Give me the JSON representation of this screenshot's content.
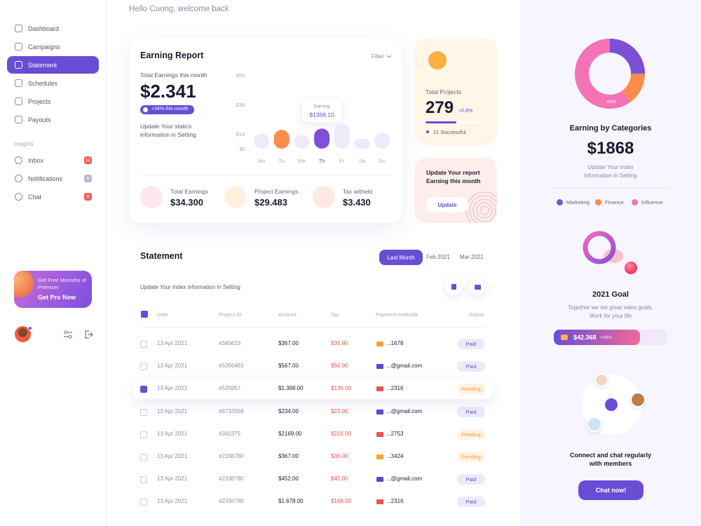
{
  "greeting": "Hello Cuong, welcome back",
  "sidebar": {
    "menu": [
      "Dashboard",
      "Campaigns",
      "Statement",
      "Schedules",
      "Projects",
      "Payouts"
    ],
    "insights_title": "Insights",
    "insights": [
      {
        "label": "Inbox",
        "badge": "12",
        "color": "#f06262"
      },
      {
        "label": "Notifications",
        "badge": "6",
        "color": "#b9b9c8"
      },
      {
        "label": "Chat",
        "badge": "6",
        "color": "#f06262"
      }
    ],
    "promo": {
      "text": "Get Free Moonths of Premium",
      "cta": "Get Pro Now"
    }
  },
  "earning_report": {
    "title": "Earning Report",
    "filter": "Filter",
    "total_label": "Total Earnings this month",
    "total": "$2.341",
    "change": "+34% this month",
    "note": "Update Your statics information in Setting",
    "stats": [
      {
        "label": "Total Earnings",
        "value": "$34.300",
        "color": "#fde7f0"
      },
      {
        "label": "Project Earnings",
        "value": "$29.483",
        "color": "#fff1dd"
      },
      {
        "label": "Tax witheld",
        "value": "$3.430",
        "color": "#fde8e6"
      }
    ]
  },
  "earning_chart": {
    "type": "bar",
    "categories": [
      "Mo",
      "Tu",
      "We",
      "Th",
      "Fr",
      "Sa",
      "Su"
    ],
    "values": [
      1017,
      1280,
      930,
      1368.1,
      1719,
      667,
      1070
    ],
    "value_labels": [
      null,
      null,
      null,
      "$1368.10",
      null,
      null,
      null
    ],
    "tooltip_title": "Earning",
    "colors": [
      "#efeafa",
      "#fb8c4c",
      "#efeafa",
      "#8050d8",
      "#efeafa",
      "#efeafa",
      "#efeafa"
    ],
    "ylim": [
      0,
      5000
    ],
    "yticks": [
      {
        "value": 0,
        "label": "$0"
      },
      {
        "value": 1000,
        "label": "$1K"
      },
      {
        "value": 3000,
        "label": "$3K"
      },
      {
        "value": 5000,
        "label": "$5K"
      }
    ]
  },
  "total_projects": {
    "label": "Total Projects",
    "value": "279",
    "change": "+0.8%",
    "successful": "21 Successful"
  },
  "update_card": {
    "text": "Update Your report Earning this month",
    "button": "Update"
  },
  "statement": {
    "title": "Statement",
    "tabs": [
      "Last Month",
      "Feb 2021",
      "Mar 2021"
    ],
    "note": "Update Your index information in Setting",
    "columns": [
      "Date",
      "Project ID",
      "Amount",
      "Tax",
      "Payment methods",
      "Status"
    ],
    "rows": [
      {
        "date": "13 Apr 2021",
        "id": "#345623",
        "amount": "$367.00",
        "tax": "$36.00",
        "method": "...1678",
        "method_color": "#f9a23b",
        "status": "Paid",
        "status_color": "#6a4dd6",
        "checked": false
      },
      {
        "date": "13 Apr 2021",
        "id": "#5356483",
        "amount": "$567.00",
        "tax": "$56.00",
        "method": "...@gmail.com",
        "method_color": "#5b47d0",
        "status": "Paid",
        "status_color": "#6a4dd6",
        "checked": false
      },
      {
        "date": "13 Apr 2021",
        "id": "#535957",
        "amount": "$1.368.00",
        "tax": "$136.00",
        "method": "...2316",
        "method_color": "#ef5350",
        "status": "Pending",
        "status_color": "#f39c2f",
        "checked": true
      },
      {
        "date": "13 Apr 2021",
        "id": "#6733569",
        "amount": "$234.00",
        "tax": "$23.00",
        "method": "...@gmail.com",
        "method_color": "#5b47d0",
        "status": "Paid",
        "status_color": "#6a4dd6",
        "checked": false
      },
      {
        "date": "13 Apr 2021",
        "id": "#342375",
        "amount": "$2169.00",
        "tax": "$216.00",
        "method": "...2753",
        "method_color": "#ef5350",
        "status": "Pending",
        "status_color": "#f39c2f",
        "checked": false
      },
      {
        "date": "13 Apr 2021",
        "id": "#2336780",
        "amount": "$367.00",
        "tax": "$36.00",
        "method": "...3424",
        "method_color": "#f9a23b",
        "status": "Pending",
        "status_color": "#f39c2f",
        "checked": false
      },
      {
        "date": "13 Apr 2021",
        "id": "#2336780",
        "amount": "$452.00",
        "tax": "$45.00",
        "method": "...@gmail.com",
        "method_color": "#5b47d0",
        "status": "Paid",
        "status_color": "#6a4dd6",
        "checked": false
      },
      {
        "date": "13 Apr 2021",
        "id": "#2336780",
        "amount": "$1.678.00",
        "tax": "$168.00",
        "method": "...2316",
        "method_color": "#ef5350",
        "status": "Paid",
        "status_color": "#6a4dd6",
        "checked": false
      }
    ]
  },
  "categories_chart": {
    "type": "pie",
    "title": "Earning by Categories",
    "total": "$1868",
    "note": "Update Your index information in Setting",
    "series": [
      {
        "name": "Marketing",
        "color": "#7c4fd6",
        "value": 25
      },
      {
        "name": "Finance",
        "color": "#fb8c4c",
        "value": 15
      },
      {
        "name": "Influence",
        "color": "#f472b6",
        "value": 60,
        "value_label": "60%"
      }
    ]
  },
  "goal": {
    "title": "2021 Goal",
    "note": "Together we set great sales goals. Work for your life",
    "amount": "$42.368",
    "change": "+48%"
  },
  "chat": {
    "text": "Connect and chat regularly with members",
    "button": "Chat now!"
  }
}
